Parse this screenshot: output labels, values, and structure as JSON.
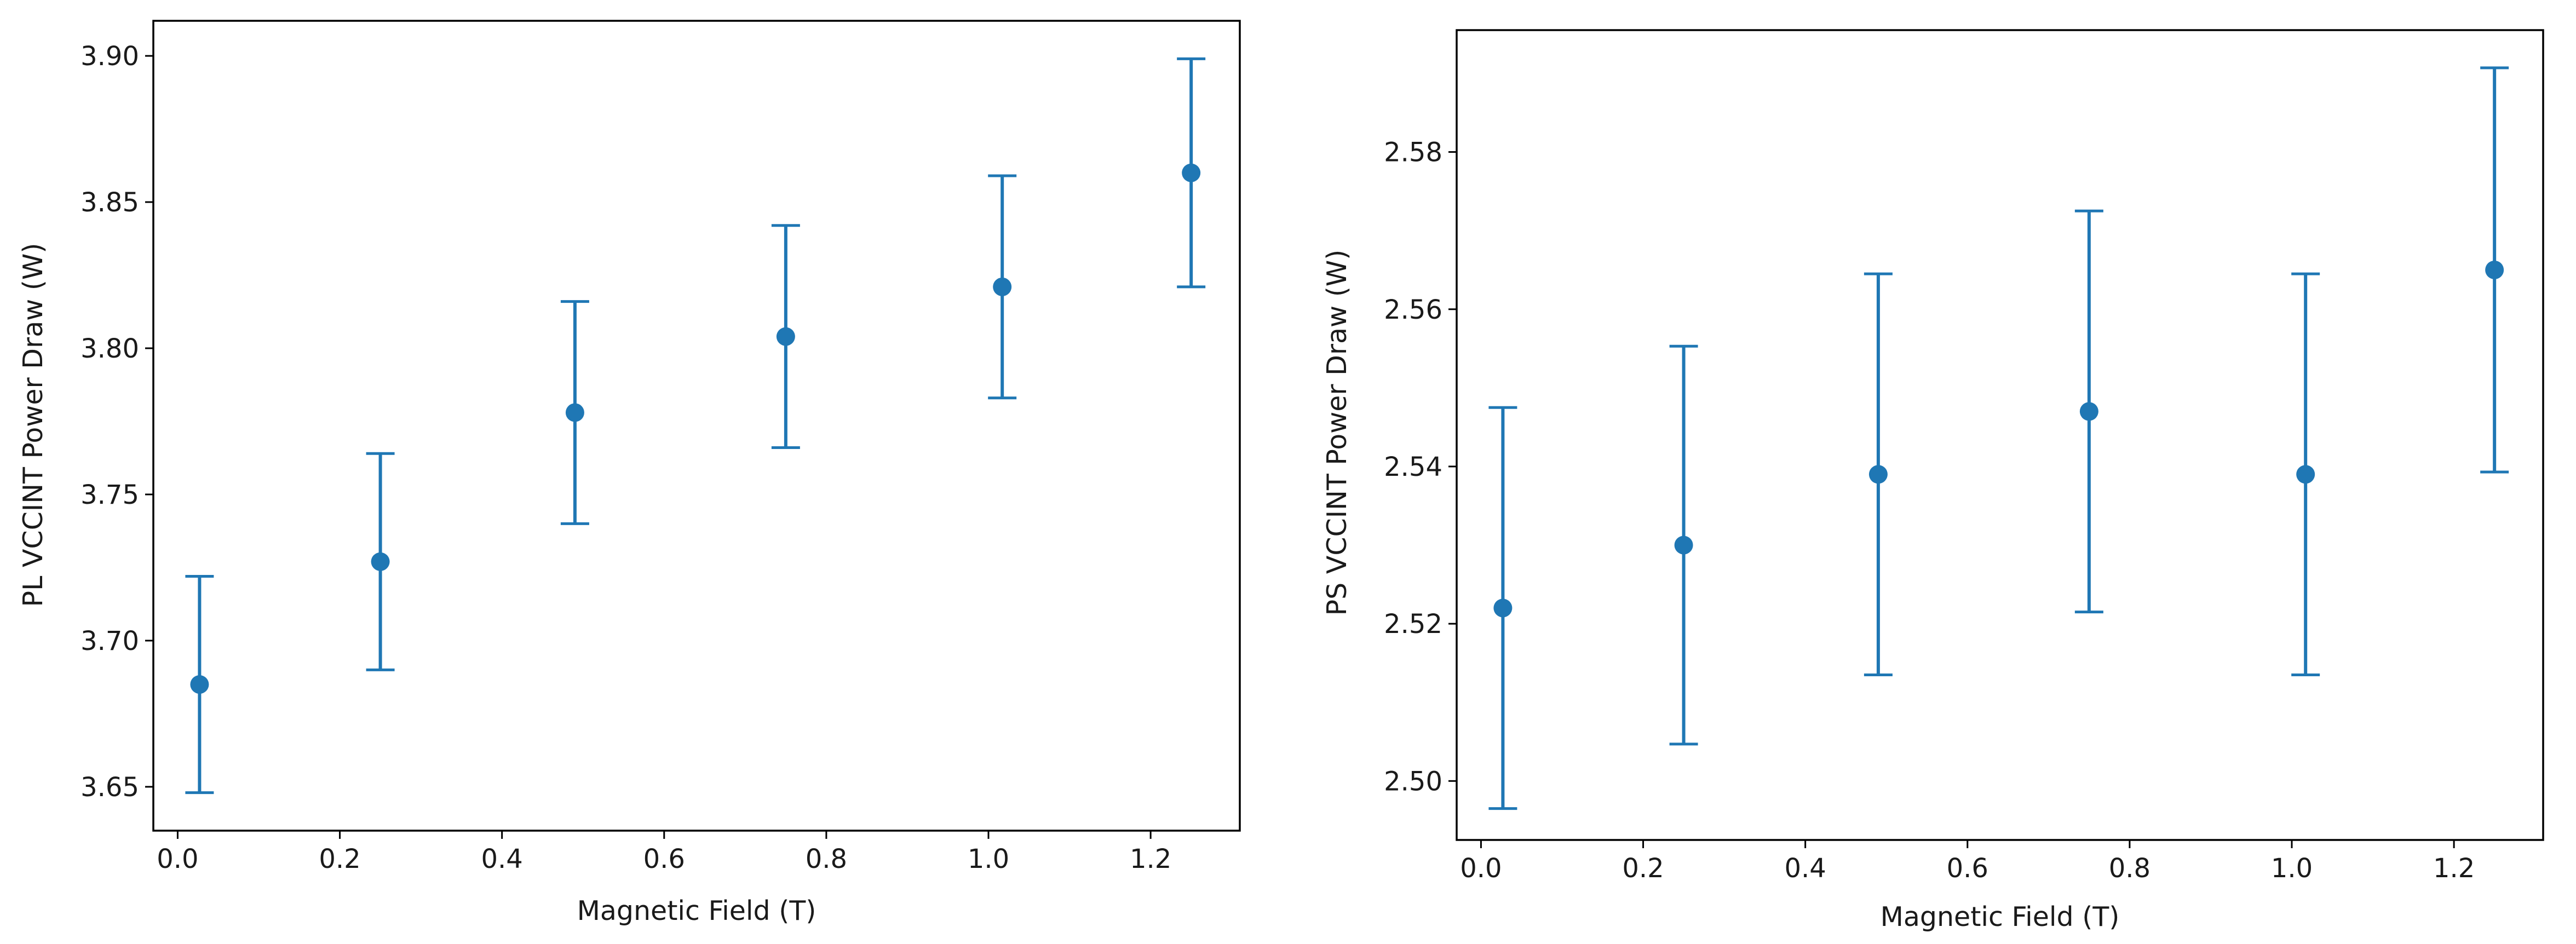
{
  "chart_data": [
    {
      "type": "scatter",
      "error_bars": true,
      "title": "",
      "xlabel": "Magnetic Field (T)",
      "ylabel": "PL VCCINT Power Draw (W)",
      "xlim": [
        -0.03,
        1.31
      ],
      "ylim": [
        3.635,
        3.912
      ],
      "xticks": [
        "0.0",
        "0.2",
        "0.4",
        "0.6",
        "0.8",
        "1.0",
        "1.2"
      ],
      "yticks": [
        "3.65",
        "3.70",
        "3.75",
        "3.80",
        "3.85",
        "3.90"
      ],
      "grid": false,
      "color": "#1f77b4",
      "x": [
        0.027,
        0.25,
        0.49,
        0.75,
        1.017,
        1.25
      ],
      "y": [
        3.685,
        3.727,
        3.778,
        3.804,
        3.821,
        3.86
      ],
      "yerr": [
        0.037,
        0.037,
        0.038,
        0.038,
        0.038,
        0.039
      ]
    },
    {
      "type": "scatter",
      "error_bars": true,
      "title": "",
      "xlabel": "Magnetic Field (T)",
      "ylabel": "PS VCCINT Power Draw (W)",
      "xlim": [
        -0.03,
        1.31
      ],
      "ylim": [
        2.4925,
        2.5955
      ],
      "xticks": [
        "0.0",
        "0.2",
        "0.4",
        "0.6",
        "0.8",
        "1.0",
        "1.2"
      ],
      "yticks": [
        "2.50",
        "2.52",
        "2.54",
        "2.56",
        "2.58"
      ],
      "grid": false,
      "color": "#1f77b4",
      "x": [
        0.027,
        0.25,
        0.49,
        0.75,
        1.017,
        1.25
      ],
      "y": [
        2.522,
        2.53,
        2.539,
        2.547,
        2.539,
        2.565
      ],
      "yerr": [
        0.0255,
        0.0253,
        0.0255,
        0.0255,
        0.0255,
        0.0257
      ]
    }
  ]
}
